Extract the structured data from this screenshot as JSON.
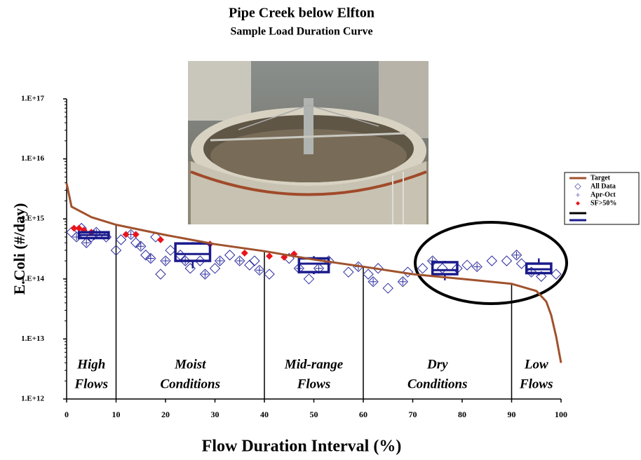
{
  "chart_data": {
    "type": "scatter",
    "title": "Pipe Creek below Elfton",
    "subtitle": "Sample Load Duration Curve",
    "x_label": "Flow Duration Interval (%)",
    "y_label": "E.Coli (#/day)",
    "xlim": [
      0,
      100
    ],
    "xticks": [
      0,
      10,
      20,
      30,
      40,
      50,
      60,
      70,
      80,
      90,
      100
    ],
    "ylim": [
      1000000000000.0,
      1e+17
    ],
    "yscale": "log",
    "yticks": [
      {
        "value": 1000000000000.0,
        "label": "1.E+12"
      },
      {
        "value": 10000000000000.0,
        "label": "1.E+13"
      },
      {
        "value": 100000000000000.0,
        "label": "1.E+14"
      },
      {
        "value": 1000000000000000.0,
        "label": "1.E+15"
      },
      {
        "value": 1e+16,
        "label": "1.E+16"
      },
      {
        "value": 1e+17,
        "label": "1.E+17"
      }
    ],
    "zone_boundaries": [
      10,
      40,
      60,
      90
    ],
    "zones": [
      {
        "lines": [
          "High",
          "Flows"
        ]
      },
      {
        "lines": [
          "Moist",
          "Conditions"
        ]
      },
      {
        "lines": [
          "Mid-range",
          "Flows"
        ]
      },
      {
        "lines": [
          "Dry",
          "Conditions"
        ]
      },
      {
        "lines": [
          "Low",
          "Flows"
        ]
      }
    ],
    "series": [
      {
        "name": "Target",
        "type": "line",
        "color": "#a0522d",
        "x": [
          0,
          1,
          5,
          10,
          20,
          30,
          40,
          50,
          60,
          70,
          80,
          90,
          95,
          97,
          98,
          99,
          100
        ],
        "values": [
          3900000000000000.0,
          1600000000000000.0,
          1070000000000000.0,
          800000000000000.0,
          540000000000000.0,
          380000000000000.0,
          290000000000000.0,
          210000000000000.0,
          160000000000000.0,
          120000000000000.0,
          100000000000000.0,
          83000000000000.0,
          63000000000000.0,
          42000000000000.0,
          25000000000000.0,
          11000000000000.0,
          4000000000000.0
        ]
      },
      {
        "name": "All Data",
        "type": "scatter",
        "marker": "diamond",
        "color": "#2b2b9e",
        "x": [
          1,
          2,
          3,
          4,
          5,
          6,
          8,
          10,
          11,
          13,
          14,
          15,
          16,
          17,
          18,
          19,
          20,
          21,
          23,
          24,
          25,
          27,
          28,
          30,
          31,
          33,
          35,
          37,
          38,
          39,
          41,
          45,
          47,
          49,
          51,
          53,
          57,
          59,
          61,
          62,
          63,
          65,
          68,
          69,
          72,
          74,
          76,
          79,
          81,
          83,
          86,
          89,
          91,
          92,
          94,
          96,
          99
        ],
        "values": [
          600000000000000.0,
          500000000000000.0,
          700000000000000.0,
          400000000000000.0,
          500000000000000.0,
          600000000000000.0,
          500000000000000.0,
          300000000000000.0,
          450000000000000.0,
          550000000000000.0,
          400000000000000.0,
          350000000000000.0,
          250000000000000.0,
          220000000000000.0,
          500000000000000.0,
          120000000000000.0,
          200000000000000.0,
          300000000000000.0,
          250000000000000.0,
          200000000000000.0,
          150000000000000.0,
          200000000000000.0,
          120000000000000.0,
          150000000000000.0,
          200000000000000.0,
          250000000000000.0,
          200000000000000.0,
          170000000000000.0,
          200000000000000.0,
          140000000000000.0,
          120000000000000.0,
          220000000000000.0,
          150000000000000.0,
          100000000000000.0,
          150000000000000.0,
          200000000000000.0,
          130000000000000.0,
          160000000000000.0,
          120000000000000.0,
          90000000000000.0,
          150000000000000.0,
          70000000000000.0,
          90000000000000.0,
          130000000000000.0,
          150000000000000.0,
          200000000000000.0,
          150000000000000.0,
          150000000000000.0,
          170000000000000.0,
          160000000000000.0,
          200000000000000.0,
          200000000000000.0,
          250000000000000.0,
          180000000000000.0,
          130000000000000.0,
          110000000000000.0,
          120000000000000.0
        ]
      },
      {
        "name": "Apr-Oct",
        "type": "scatter",
        "marker": "plus",
        "color": "#2b2b9e",
        "x": [
          2,
          4,
          6,
          13,
          15,
          17,
          20,
          24,
          28,
          31,
          35,
          39,
          47,
          51,
          59,
          62,
          68,
          74,
          83,
          91,
          94
        ],
        "values": [
          500000000000000.0,
          400000000000000.0,
          600000000000000.0,
          550000000000000.0,
          350000000000000.0,
          220000000000000.0,
          200000000000000.0,
          200000000000000.0,
          120000000000000.0,
          200000000000000.0,
          200000000000000.0,
          140000000000000.0,
          150000000000000.0,
          150000000000000.0,
          160000000000000.0,
          90000000000000.0,
          90000000000000.0,
          200000000000000.0,
          160000000000000.0,
          250000000000000.0,
          130000000000000.0
        ]
      },
      {
        "name": "SF>50%",
        "type": "scatter",
        "marker": "filled-diamond",
        "color": "#e8141c",
        "x": [
          1.5,
          2.5,
          3.5,
          5,
          12,
          14,
          19,
          29,
          36,
          41,
          44,
          46
        ],
        "values": [
          700000000000000.0,
          700000000000000.0,
          650000000000000.0,
          600000000000000.0,
          550000000000000.0,
          550000000000000.0,
          450000000000000.0,
          380000000000000.0,
          270000000000000.0,
          240000000000000.0,
          230000000000000.0,
          260000000000000.0
        ]
      }
    ],
    "boxes": [
      {
        "x_range": [
          2.5,
          8.5
        ],
        "low": 450000000000000.0,
        "q1": 480000000000000.0,
        "median": 540000000000000.0,
        "q3": 600000000000000.0,
        "high": 650000000000000.0
      },
      {
        "x_range": [
          22,
          29
        ],
        "low": 150000000000000.0,
        "q1": 200000000000000.0,
        "median": 260000000000000.0,
        "q3": 390000000000000.0,
        "high": 410000000000000.0
      },
      {
        "x_range": [
          47,
          53
        ],
        "low": 120000000000000.0,
        "q1": 130000000000000.0,
        "median": 180000000000000.0,
        "q3": 220000000000000.0,
        "high": 240000000000000.0
      },
      {
        "x_range": [
          74,
          79
        ],
        "low": 95000000000000.0,
        "q1": 120000000000000.0,
        "median": 140000000000000.0,
        "q3": 190000000000000.0,
        "high": 200000000000000.0
      },
      {
        "x_range": [
          93,
          98
        ],
        "low": 115000000000000.0,
        "q1": 125000000000000.0,
        "median": 145000000000000.0,
        "q3": 180000000000000.0,
        "high": 220000000000000.0
      }
    ],
    "box_color": "#1a1a8c",
    "boundary_color": "#000000"
  }
}
